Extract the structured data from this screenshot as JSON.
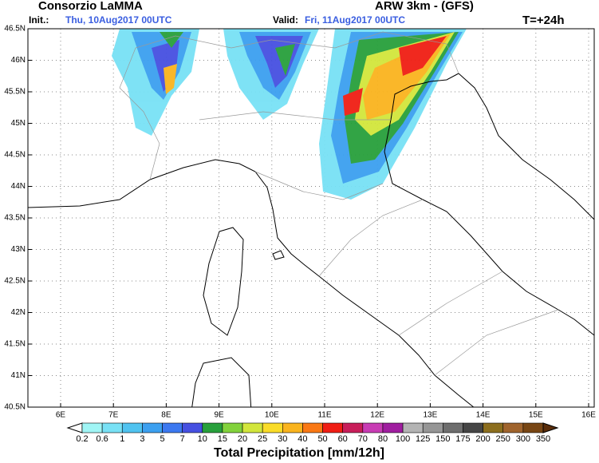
{
  "header": {
    "org": "Consorzio LaMMA",
    "model": "ARW 3km - (GFS)",
    "init_label": "Init.:",
    "init": "Thu, 10Aug2017 00UTC",
    "valid_label": "Valid:",
    "valid": "Fri, 11Aug2017 00UTC",
    "lead": "T=+24h"
  },
  "map": {
    "lat_labels": [
      "46.5N",
      "46N",
      "45.5N",
      "45N",
      "44.5N",
      "44N",
      "43.5N",
      "43N",
      "42.5N",
      "42N",
      "41.5N",
      "41N",
      "40.5N"
    ],
    "lon_labels": [
      "6E",
      "7E",
      "8E",
      "9E",
      "10E",
      "11E",
      "12E",
      "13E",
      "14E",
      "15E",
      "16E"
    ]
  },
  "colorbar": {
    "title": "Total Precipitation [mm/12h]",
    "labels": [
      "0.2",
      "0.6",
      "1",
      "3",
      "5",
      "7",
      "10",
      "15",
      "20",
      "25",
      "30",
      "40",
      "50",
      "60",
      "70",
      "80",
      "100",
      "125",
      "150",
      "175",
      "200",
      "250",
      "300",
      "350"
    ],
    "colors": [
      "#ffffff",
      "#a0f5f5",
      "#78e1f5",
      "#50c3f0",
      "#3ca0f0",
      "#3c78f0",
      "#4650e1",
      "#28a03c",
      "#82d23c",
      "#d2e63c",
      "#fadc28",
      "#fab41e",
      "#fa7814",
      "#f01e14",
      "#c81e5a",
      "#c83cb4",
      "#a01ea0",
      "#b4b4b4",
      "#969696",
      "#6e6e6e",
      "#464646",
      "#8c6e1e",
      "#a0642d",
      "#784614",
      "#5a2d0a"
    ]
  }
}
